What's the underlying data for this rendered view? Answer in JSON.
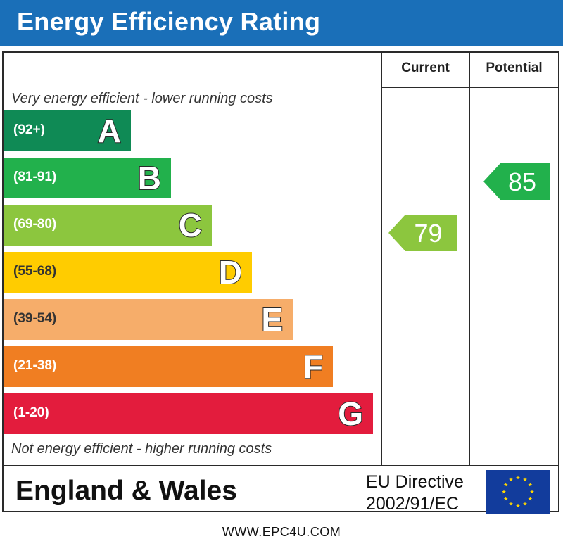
{
  "title": "Energy Efficiency Rating",
  "columns": {
    "current": "Current",
    "potential": "Potential"
  },
  "top_caption": "Very energy efficient - lower running costs",
  "bottom_caption": "Not energy efficient - higher running costs",
  "footer": {
    "region": "England & Wales",
    "directive_line1": "EU Directive",
    "directive_line2": "2002/91/EC",
    "url": "WWW.EPC4U.COM"
  },
  "colors": {
    "title_bar": "#1a6fb8",
    "band_A": "#0f8a55",
    "band_B": "#22b14c",
    "band_C": "#8cc63e",
    "band_D": "#ffcc00",
    "band_E": "#f6ad6a",
    "band_F": "#f07e22",
    "band_G": "#e31c3d",
    "eu_flag": "#123c9c",
    "eu_stars": "#ffd700"
  },
  "chart_data": {
    "type": "bar",
    "title": "Energy Efficiency Rating",
    "categories": [
      "A",
      "B",
      "C",
      "D",
      "E",
      "F",
      "G"
    ],
    "ranges": [
      "(92+)",
      "(81-91)",
      "(69-80)",
      "(55-68)",
      "(39-54)",
      "(21-38)",
      "(1-20)"
    ],
    "values": [
      1,
      2,
      3,
      4,
      5,
      6,
      7
    ],
    "current": {
      "value": 79,
      "band": "C"
    },
    "potential": {
      "value": 85,
      "band": "B"
    }
  }
}
